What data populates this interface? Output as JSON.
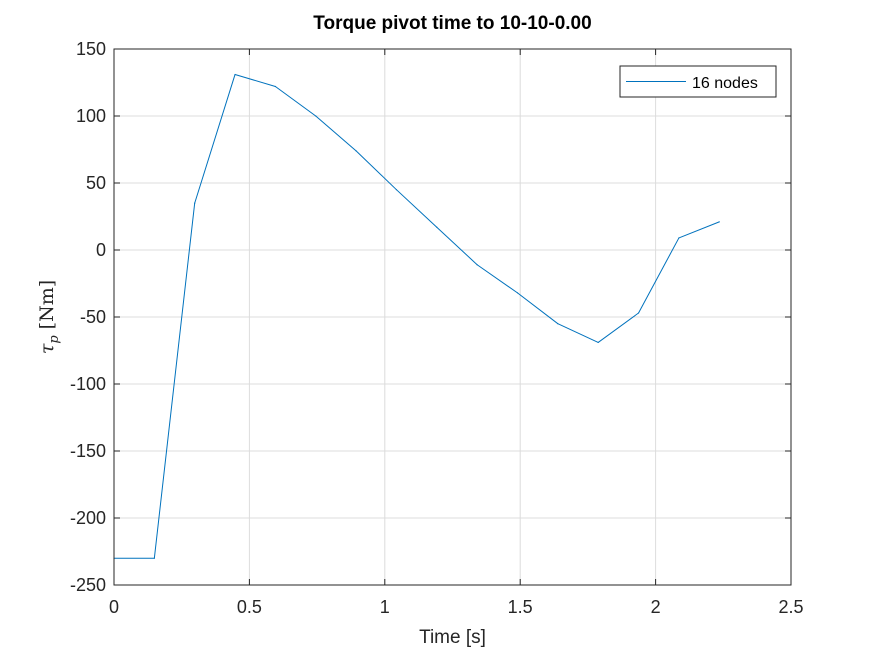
{
  "chart_data": {
    "type": "line",
    "title": "Torque pivot time to 10-10-0.00",
    "xlabel": "Time [s]",
    "ylabel": {
      "symbol": "τ",
      "subscript": "p",
      "unit": "[Nm]"
    },
    "xlim": [
      0,
      2.5
    ],
    "ylim": [
      -250,
      150
    ],
    "xticks": [
      0,
      0.5,
      1,
      1.5,
      2,
      2.5
    ],
    "xtick_labels": [
      "0",
      "0.5",
      "1",
      "1.5",
      "2",
      "2.5"
    ],
    "yticks": [
      -250,
      -200,
      -150,
      -100,
      -50,
      0,
      50,
      100,
      150
    ],
    "ytick_labels": [
      "-250",
      "-200",
      "-150",
      "-100",
      "-50",
      "0",
      "50",
      "100",
      "150"
    ],
    "grid": true,
    "legend": {
      "position": "top-right",
      "entries": [
        "16 nodes"
      ]
    },
    "series": [
      {
        "name": "16 nodes",
        "color": "#0072bd",
        "x": [
          0,
          0.149,
          0.298,
          0.447,
          0.596,
          0.745,
          0.894,
          1.043,
          1.192,
          1.341,
          1.49,
          1.639,
          1.788,
          1.937,
          2.086,
          2.235
        ],
        "y": [
          -230,
          -230,
          35,
          131,
          122,
          100,
          74,
          45,
          17,
          -11,
          -32,
          -55,
          -69,
          -47,
          9,
          21
        ]
      }
    ]
  }
}
